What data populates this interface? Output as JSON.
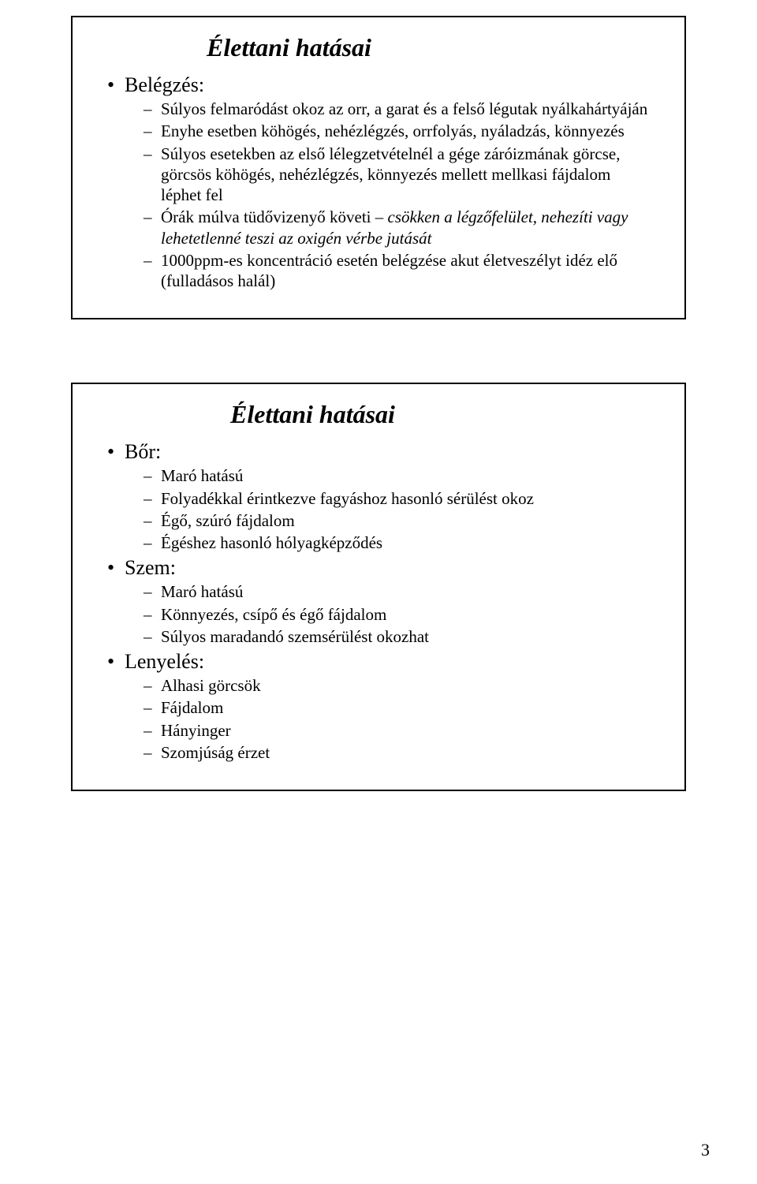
{
  "page": {
    "number": "3",
    "background_color": "#ffffff",
    "text_color": "#000000",
    "border_color": "#000000",
    "font_family": "Times New Roman",
    "title_fontsize": 32,
    "level1_fontsize": 26,
    "level2_fontsize": 21
  },
  "slide1": {
    "title": "Élettani hatásai",
    "section1": {
      "heading": "Belégzés:",
      "items": [
        {
          "text": "Súlyos felmaródást okoz az orr, a garat és a felső légutak nyálkahártyáján"
        },
        {
          "text": "Enyhe esetben köhögés, nehézlégzés, orrfolyás, nyáladzás, könnyezés"
        },
        {
          "text": "Súlyos esetekben az első lélegzetvételnél a gége záróizmának görcse, görcsös köhögés, nehézlégzés, könnyezés mellett mellkasi fájdalom léphet fel"
        },
        {
          "text_plain": "Órák múlva tüdővizenyő követi – ",
          "text_italic": "csökken a légzőfelület, nehezíti vagy lehetetlenné teszi az oxigén vérbe jutását"
        },
        {
          "text": "1000ppm-es koncentráció esetén belégzése akut életveszélyt idéz elő (fulladásos halál)"
        }
      ]
    }
  },
  "slide2": {
    "title": "Élettani hatásai",
    "section1": {
      "heading": "Bőr:",
      "items": [
        {
          "text": "Maró hatású"
        },
        {
          "text": "Folyadékkal érintkezve fagyáshoz hasonló sérülést okoz"
        },
        {
          "text": "Égő, szúró fájdalom"
        },
        {
          "text": "Égéshez hasonló hólyagképződés"
        }
      ]
    },
    "section2": {
      "heading": "Szem:",
      "items": [
        {
          "text": "Maró hatású"
        },
        {
          "text": "Könnyezés, csípő és égő fájdalom"
        },
        {
          "text": "Súlyos maradandó szemsérülést okozhat"
        }
      ]
    },
    "section3": {
      "heading": "Lenyelés:",
      "items": [
        {
          "text": "Alhasi görcsök"
        },
        {
          "text": "Fájdalom"
        },
        {
          "text": "Hányinger"
        },
        {
          "text": "Szomjúság érzet"
        }
      ]
    }
  }
}
